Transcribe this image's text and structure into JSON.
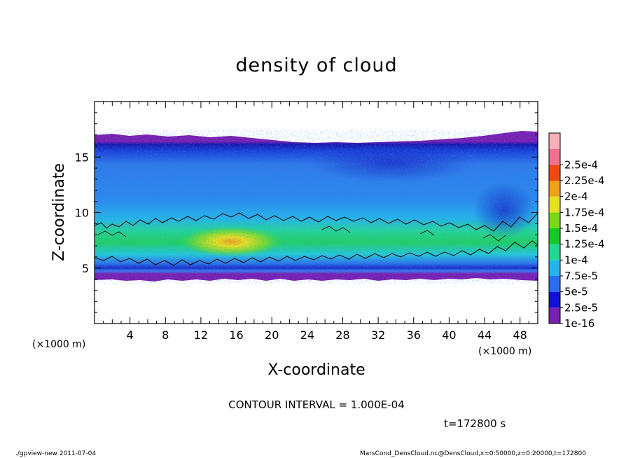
{
  "chart_data": {
    "type": "heatmap",
    "title": "density of cloud",
    "xlabel": "X-coordinate",
    "ylabel": "Z-coordinate",
    "x_unit": "(×1000 m)",
    "y_unit": "(×1000 m)",
    "xlim": [
      0,
      50
    ],
    "ylim": [
      0,
      20
    ],
    "x_ticks": [
      4,
      8,
      12,
      16,
      20,
      24,
      28,
      32,
      36,
      40,
      44,
      48
    ],
    "y_ticks": [
      5,
      10,
      15
    ],
    "colorbar": {
      "levels": [
        "1e-16",
        "2.5e-5",
        "5e-5",
        "7.5e-5",
        "1e-4",
        "1.25e-4",
        "1.5e-4",
        "1.75e-4",
        "2e-4",
        "2.25e-4",
        "2.5e-4"
      ],
      "colors": [
        "#7a1fb0",
        "#1010d8",
        "#2a6cf0",
        "#23b4f0",
        "#20d890",
        "#18c828",
        "#7ad818",
        "#e6e020",
        "#f2a018",
        "#f04a10",
        "#f07090",
        "#f8b0b8"
      ]
    },
    "contour_interval": "CONTOUR INTERVAL = 1.000E-04",
    "time_label": "t=172800 s"
  },
  "footer": {
    "left": "./gpview-new  2011-07-04",
    "right": "MarsCond_DensCloud.nc@DensCloud,x=0:50000,z=0:20000,t=172800"
  }
}
